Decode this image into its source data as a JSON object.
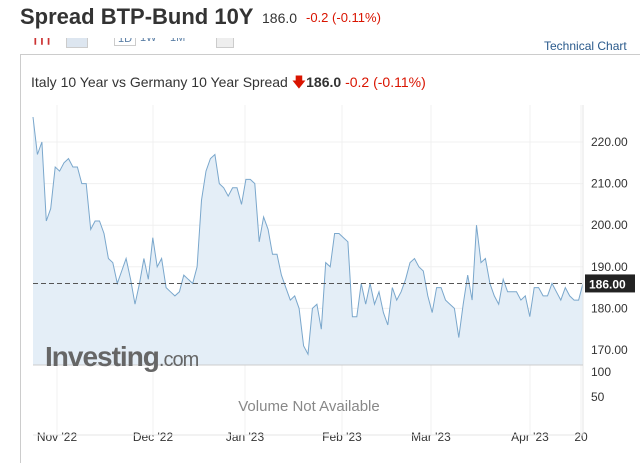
{
  "header": {
    "title": "Spread BTP-Bund 10Y",
    "value": "186.0",
    "change": "-0.2",
    "change_pct": "(-0.11%)"
  },
  "toolbar": {
    "intervals": [
      "1D",
      "1W",
      "1M"
    ],
    "technical_chart": "Technical Chart"
  },
  "chart_data": {
    "type": "area",
    "title": "Italy 10 Year vs Germany 10 Year Spread",
    "last_value": "186.0",
    "change": "-0.2",
    "change_pct": "(-0.11%)",
    "current_label": "186.00",
    "current": 186,
    "ylim": [
      166,
      228
    ],
    "yticks": [
      {
        "v": 170,
        "label": "170.00"
      },
      {
        "v": 180,
        "label": "180.00"
      },
      {
        "v": 190,
        "label": "190.00"
      },
      {
        "v": 200,
        "label": "200.00"
      },
      {
        "v": 210,
        "label": "210.00"
      },
      {
        "v": 220,
        "label": "220.00"
      }
    ],
    "xticks": [
      "Nov '22",
      "Dec '22",
      "Jan '23",
      "Feb '23",
      "Mar '23",
      "Apr '23",
      "20"
    ],
    "values": [
      226,
      217,
      220,
      201,
      204,
      214,
      213,
      215,
      216,
      214,
      214,
      210,
      210,
      199,
      201,
      201,
      198,
      192,
      191,
      186,
      189,
      192,
      187,
      181,
      186,
      192,
      187,
      197,
      190,
      192,
      185,
      184,
      183,
      184,
      188,
      187,
      186,
      190,
      206,
      213,
      216,
      217,
      210,
      209,
      207,
      209,
      209,
      205,
      211,
      211,
      210,
      196,
      202,
      199,
      193,
      193,
      188,
      185,
      182,
      183,
      180,
      171,
      169,
      180,
      181,
      175,
      191,
      190,
      198,
      198,
      197,
      196,
      178,
      178,
      186,
      181,
      186,
      181,
      184,
      179,
      176,
      185,
      182,
      184,
      187,
      191,
      192,
      190,
      189,
      183,
      179,
      185,
      185,
      182,
      181,
      180,
      173,
      181,
      188,
      182,
      200,
      191,
      192,
      186,
      183,
      181,
      187,
      184,
      184,
      184,
      182,
      183,
      178,
      185,
      185,
      183,
      183,
      186,
      184,
      182,
      185,
      183,
      182,
      182,
      186
    ],
    "volume": {
      "yticks": [
        "100",
        "50"
      ],
      "message": "Volume Not Available"
    },
    "watermark": "Investing.com",
    "colors": {
      "line": "#7aa7cc",
      "fill": "#e4eef7",
      "down": "#d91400"
    }
  }
}
